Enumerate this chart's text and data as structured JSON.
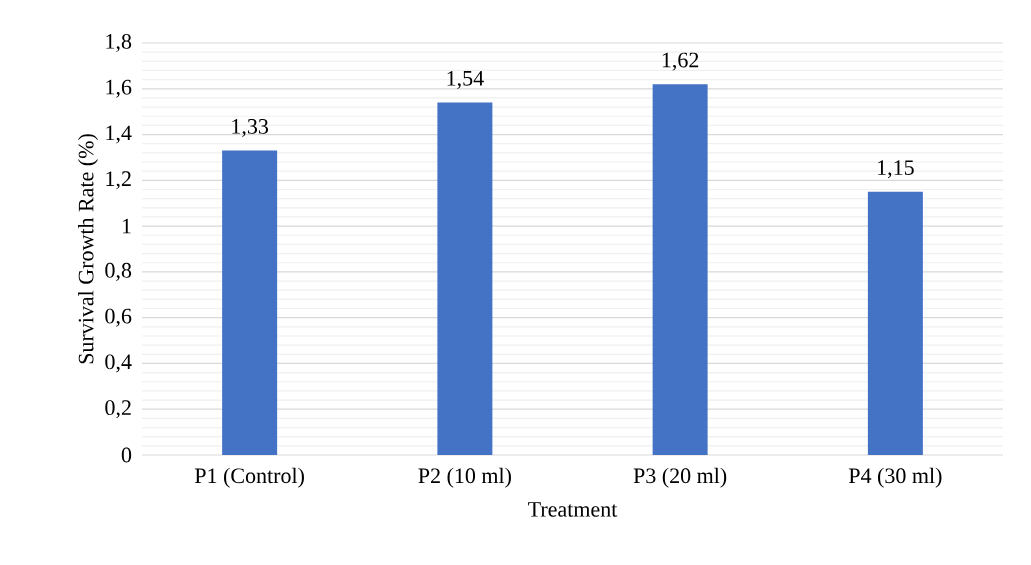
{
  "chart_data": {
    "type": "bar",
    "xlabel": "Treatment",
    "ylabel": "Survival Growth Rate (%)",
    "categories": [
      "P1 (Control)",
      "P2 (10 ml)",
      "P3 (20 ml)",
      "P4 (30 ml)"
    ],
    "values": [
      1.33,
      1.54,
      1.62,
      1.15
    ],
    "value_labels": [
      "1,33",
      "1,54",
      "1,62",
      "1,15"
    ],
    "color": "#4472c4",
    "ylim": [
      0,
      1.8
    ],
    "yticks": [
      0,
      {
        "value": 0.2,
        "label": "0,2"
      },
      {
        "value": 0.4,
        "label": "0,4"
      },
      {
        "value": 0.6,
        "label": "0,6"
      },
      {
        "value": 0.8,
        "label": "0,8"
      },
      1,
      {
        "value": 1.2,
        "label": "1,2"
      },
      {
        "value": 1.4,
        "label": "1,4"
      },
      {
        "value": 1.6,
        "label": "1,6"
      },
      {
        "value": 1.8,
        "label": "1,8"
      }
    ],
    "grid": "y"
  }
}
